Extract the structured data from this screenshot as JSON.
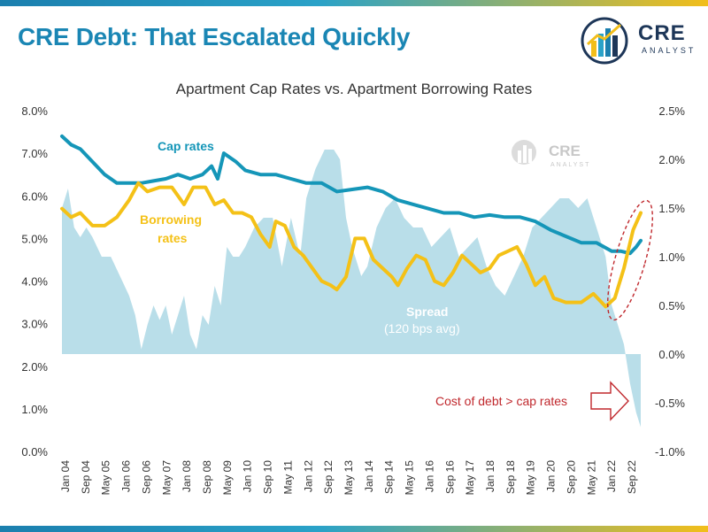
{
  "header": {
    "title": "CRE Debt: That Escalated Quickly"
  },
  "logo": {
    "word": "CRE",
    "sub": "ANALYST"
  },
  "watermark": {
    "word": "CRE",
    "sub": "ANALYST"
  },
  "colors": {
    "accent": "#1a86b4",
    "cap": "#1596b8",
    "borrow": "#f4c117",
    "spread": "#b9dee9",
    "callout": "#c0282d"
  },
  "chart_data": {
    "type": "line",
    "title": "Apartment Cap Rates vs. Apartment Borrowing Rates",
    "x_tick_labels": [
      "Jan 04",
      "Sep 04",
      "May 05",
      "Jan 06",
      "Sep 06",
      "May 07",
      "Jan 08",
      "Sep 08",
      "May 09",
      "Jan 10",
      "Sep 10",
      "May 11",
      "Jan 12",
      "Sep 12",
      "May 13",
      "Jan 14",
      "Sep 14",
      "May 15",
      "Jan 16",
      "Sep 16",
      "May 17",
      "Jan 18",
      "Sep 18",
      "May 19",
      "Jan 20",
      "Sep 20",
      "May 21",
      "Jan 22",
      "Sep 22"
    ],
    "y_left": {
      "ticks": [
        "0.0%",
        "1.0%",
        "2.0%",
        "3.0%",
        "4.0%",
        "5.0%",
        "6.0%",
        "7.0%",
        "8.0%"
      ],
      "ylim": [
        0,
        8
      ]
    },
    "y_right": {
      "ticks": [
        "-1.0%",
        "-0.5%",
        "0.0%",
        "0.5%",
        "1.0%",
        "1.5%",
        "2.0%",
        "2.5%"
      ],
      "ylim": [
        -1,
        2.5
      ]
    },
    "series": [
      {
        "name": "Cap rates",
        "axis": "left",
        "color": "#1596b8",
        "x": [
          2004.0,
          2004.3,
          2004.6,
          2005.0,
          2005.4,
          2005.8,
          2006.2,
          2006.6,
          2007.0,
          2007.4,
          2007.8,
          2008.2,
          2008.6,
          2008.9,
          2009.1,
          2009.3,
          2009.7,
          2010.0,
          2010.5,
          2011.0,
          2011.5,
          2012.0,
          2012.5,
          2013.0,
          2013.5,
          2014.0,
          2014.5,
          2015.0,
          2015.5,
          2016.0,
          2016.5,
          2017.0,
          2017.5,
          2018.0,
          2018.5,
          2019.0,
          2019.5,
          2020.0,
          2020.5,
          2021.0,
          2021.5,
          2022.0,
          2022.3,
          2022.6,
          2022.8,
          2022.95
        ],
        "y": [
          7.4,
          7.2,
          7.1,
          6.8,
          6.5,
          6.3,
          6.3,
          6.3,
          6.35,
          6.4,
          6.5,
          6.4,
          6.5,
          6.7,
          6.4,
          7.0,
          6.8,
          6.6,
          6.5,
          6.5,
          6.4,
          6.3,
          6.3,
          6.1,
          6.15,
          6.2,
          6.1,
          5.9,
          5.8,
          5.7,
          5.6,
          5.6,
          5.5,
          5.55,
          5.5,
          5.5,
          5.4,
          5.2,
          5.05,
          4.9,
          4.9,
          4.7,
          4.7,
          4.65,
          4.8,
          4.95
        ]
      },
      {
        "name": "Borrowing rates",
        "axis": "left",
        "color": "#f4c117",
        "x": [
          2004.0,
          2004.3,
          2004.6,
          2005.0,
          2005.4,
          2005.8,
          2006.2,
          2006.5,
          2006.8,
          2007.2,
          2007.6,
          2008.0,
          2008.3,
          2008.7,
          2009.0,
          2009.3,
          2009.6,
          2009.9,
          2010.2,
          2010.5,
          2010.8,
          2011.0,
          2011.3,
          2011.6,
          2011.9,
          2012.2,
          2012.5,
          2012.8,
          2013.0,
          2013.3,
          2013.6,
          2013.9,
          2014.2,
          2014.5,
          2014.8,
          2015.0,
          2015.3,
          2015.6,
          2015.9,
          2016.2,
          2016.5,
          2016.8,
          2017.1,
          2017.4,
          2017.7,
          2018.0,
          2018.3,
          2018.6,
          2018.9,
          2019.2,
          2019.5,
          2019.8,
          2020.1,
          2020.5,
          2021.0,
          2021.4,
          2021.8,
          2022.1,
          2022.4,
          2022.7,
          2022.95
        ],
        "y": [
          5.7,
          5.5,
          5.6,
          5.3,
          5.3,
          5.5,
          5.9,
          6.3,
          6.1,
          6.2,
          6.2,
          5.8,
          6.2,
          6.2,
          5.8,
          5.9,
          5.6,
          5.6,
          5.5,
          5.1,
          4.8,
          5.4,
          5.3,
          4.8,
          4.6,
          4.3,
          4.0,
          3.9,
          3.8,
          4.1,
          5.0,
          5.0,
          4.5,
          4.3,
          4.1,
          3.9,
          4.3,
          4.6,
          4.5,
          4.0,
          3.9,
          4.2,
          4.6,
          4.4,
          4.2,
          4.3,
          4.6,
          4.7,
          4.8,
          4.4,
          3.9,
          4.1,
          3.6,
          3.5,
          3.5,
          3.7,
          3.4,
          3.6,
          4.3,
          5.2,
          5.6
        ]
      },
      {
        "name": "Spread",
        "axis": "right",
        "color": "#b9dee9",
        "x": [
          2004.0,
          2004.2,
          2004.4,
          2004.6,
          2004.8,
          2005.0,
          2005.3,
          2005.6,
          2005.9,
          2006.2,
          2006.4,
          2006.6,
          2006.8,
          2007.0,
          2007.2,
          2007.4,
          2007.6,
          2007.8,
          2008.0,
          2008.2,
          2008.4,
          2008.6,
          2008.8,
          2009.0,
          2009.2,
          2009.4,
          2009.6,
          2009.8,
          2010.0,
          2010.3,
          2010.6,
          2010.9,
          2011.2,
          2011.5,
          2011.8,
          2012.0,
          2012.3,
          2012.6,
          2012.9,
          2013.1,
          2013.3,
          2013.5,
          2013.8,
          2014.0,
          2014.3,
          2014.6,
          2014.9,
          2015.2,
          2015.5,
          2015.8,
          2016.1,
          2016.4,
          2016.7,
          2017.0,
          2017.3,
          2017.6,
          2017.9,
          2018.2,
          2018.5,
          2018.8,
          2019.1,
          2019.4,
          2019.7,
          2020.0,
          2020.3,
          2020.6,
          2020.9,
          2021.2,
          2021.5,
          2021.8,
          2022.0,
          2022.2,
          2022.4,
          2022.6,
          2022.8,
          2022.95
        ],
        "y": [
          1.5,
          1.7,
          1.3,
          1.2,
          1.3,
          1.2,
          1.0,
          1.0,
          0.8,
          0.6,
          0.4,
          0.05,
          0.3,
          0.5,
          0.35,
          0.5,
          0.2,
          0.4,
          0.6,
          0.2,
          0.05,
          0.4,
          0.3,
          0.7,
          0.5,
          1.1,
          1.0,
          1.0,
          1.1,
          1.3,
          1.4,
          1.4,
          0.9,
          1.4,
          1.0,
          1.6,
          1.9,
          2.1,
          2.1,
          2.0,
          1.4,
          1.1,
          0.8,
          0.9,
          1.3,
          1.5,
          1.6,
          1.4,
          1.3,
          1.3,
          1.1,
          1.2,
          1.3,
          1.0,
          1.1,
          1.2,
          0.9,
          0.7,
          0.6,
          0.8,
          1.0,
          1.3,
          1.4,
          1.5,
          1.6,
          1.6,
          1.5,
          1.6,
          1.3,
          1.0,
          0.5,
          0.3,
          0.1,
          -0.3,
          -0.6,
          -0.75
        ]
      }
    ],
    "annotations": {
      "cap_label": "Cap rates",
      "borrow_label_1": "Borrowing",
      "borrow_label_2": "rates",
      "spread_label": "Spread",
      "spread_sub": "(120 bps avg)",
      "callout": "Cost of debt > cap rates"
    }
  }
}
